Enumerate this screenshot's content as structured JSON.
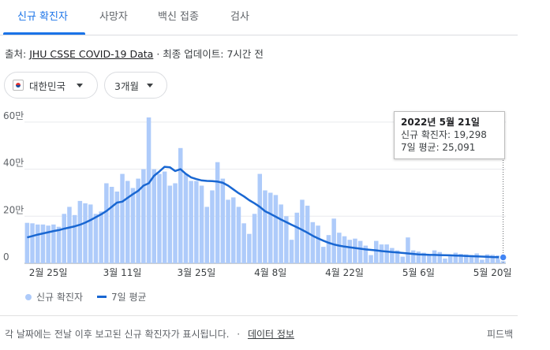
{
  "tabs": [
    {
      "label": "신규 확진자",
      "active": true
    },
    {
      "label": "사망자"
    },
    {
      "label": "백신 접종"
    },
    {
      "label": "검사"
    }
  ],
  "source": {
    "prefix": "출처:",
    "link": "JHU CSSE COVID-19 Data",
    "separator": "·",
    "updated": "최종 업데이트: 7시간 전"
  },
  "filters": {
    "region": "대한민국",
    "period": "3개월"
  },
  "tooltip": {
    "date": "2022년 5월 21일",
    "cases": "신규 확진자: 19,298",
    "avg": "7일 평균: 25,091"
  },
  "legend": {
    "bars": "신규 확진자",
    "line": "7일 평균"
  },
  "footer": {
    "note": "각 날짜에는 전날 이후 보고된 신규 확진자가 표시됩니다.",
    "separator": "·",
    "link": "데이터 정보",
    "feedback": "피드백"
  },
  "colors": {
    "bar": "#aecbfa",
    "line": "#1967d2",
    "accent": "#1a73e8",
    "grid": "#e8eaed"
  },
  "chart_data": {
    "type": "bar",
    "x_start": "2022-02-21",
    "x_end": "2022-05-21",
    "y_ticks": [
      "0",
      "20만",
      "40만",
      "60만"
    ],
    "ylim": [
      0,
      650000
    ],
    "x_tick_labels": [
      "2월 25일",
      "3월 11일",
      "3월 25일",
      "4월 8일",
      "4월 22일",
      "5월 6일",
      "5월 20일"
    ],
    "series": [
      {
        "name": "신규 확진자",
        "values": [
          172000,
          170000,
          165000,
          165000,
          160000,
          165000,
          155000,
          210000,
          240000,
          205000,
          265000,
          255000,
          250000,
          210000,
          220000,
          340000,
          325000,
          305000,
          380000,
          350000,
          320000,
          360000,
          400000,
          620000,
          400000,
          380000,
          390000,
          330000,
          340000,
          490000,
          380000,
          350000,
          350000,
          330000,
          240000,
          310000,
          430000,
          360000,
          270000,
          280000,
          240000,
          170000,
          125000,
          210000,
          380000,
          310000,
          300000,
          290000,
          250000,
          200000,
          100000,
          215000,
          270000,
          245000,
          175000,
          160000,
          70000,
          120000,
          190000,
          130000,
          115000,
          100000,
          105000,
          95000,
          75000,
          35000,
          95000,
          80000,
          80000,
          65000,
          55000,
          28000,
          110000,
          55000,
          50000,
          45000,
          40000,
          55000,
          48000,
          20000,
          35000,
          45000,
          40000,
          38000,
          35000,
          42000,
          15000,
          38000,
          36000,
          34000,
          19298
        ]
      },
      {
        "name": "7일 평균",
        "values": [
          110000,
          116000,
          122000,
          127000,
          132000,
          137000,
          141000,
          147000,
          152000,
          157000,
          164000,
          173000,
          184000,
          196000,
          208000,
          222000,
          240000,
          258000,
          262000,
          278000,
          294000,
          308000,
          330000,
          340000,
          372000,
          390000,
          410000,
          408000,
          392000,
          400000,
          380000,
          365000,
          358000,
          352000,
          350000,
          349000,
          347000,
          342000,
          330000,
          314000,
          298000,
          284000,
          268000,
          255000,
          240000,
          221000,
          210000,
          198000,
          186000,
          175000,
          164000,
          153000,
          142000,
          130000,
          117000,
          106000,
          96000,
          87000,
          80000,
          75000,
          71000,
          68000,
          65000,
          62000,
          59000,
          57000,
          55000,
          52000,
          50000,
          48000,
          46000,
          44000,
          42000,
          40000,
          38000,
          37000,
          36000,
          35500,
          35000,
          34500,
          34000,
          33000,
          32000,
          31000,
          30000,
          29500,
          28500,
          27500,
          26500,
          26000,
          25091
        ]
      }
    ]
  }
}
